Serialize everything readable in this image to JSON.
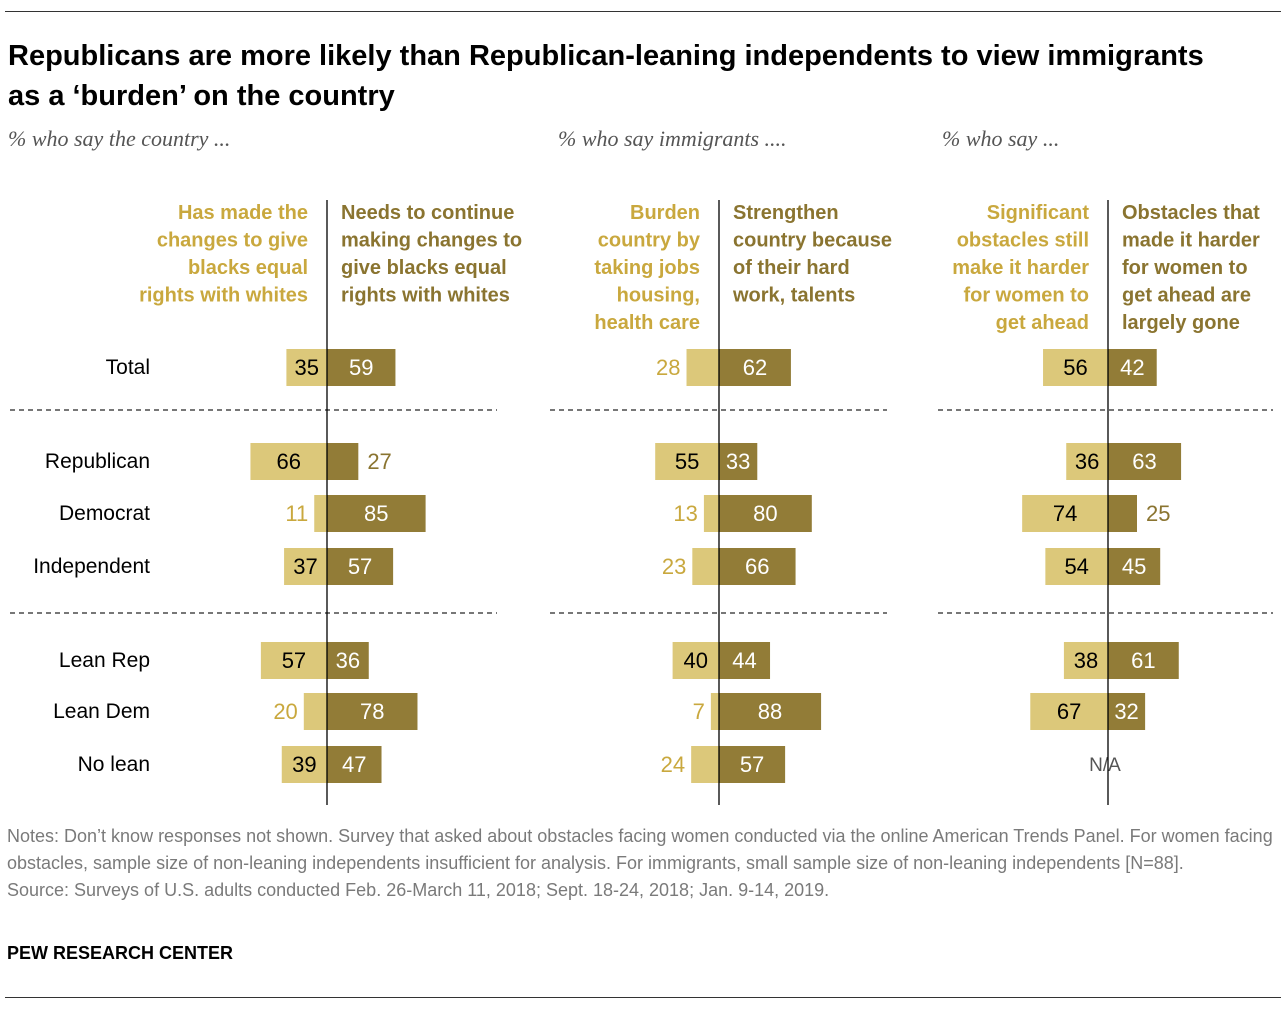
{
  "title": "Republicans are more likely than Republican-leaning independents to view immigrants as a ‘burden’ on the country",
  "colors": {
    "light": "#dcc87a",
    "dark": "#927c37",
    "light_text": "#c9a83e",
    "dark_text": "#8a7430"
  },
  "chart_data": [
    {
      "type": "bar",
      "subtitle": "% who say the country ...",
      "left_label": [
        "Has made the",
        "changes to give",
        "blacks equal",
        "rights with whites"
      ],
      "right_label": [
        "Needs to continue",
        "making changes to",
        "give blacks equal",
        "rights with whites"
      ],
      "categories": [
        "Total",
        "Republican",
        "Democrat",
        "Independent",
        "Lean Rep",
        "Lean Dem",
        "No lean"
      ],
      "series": [
        {
          "name": "Has made the changes to give blacks equal rights with whites",
          "values": [
            35,
            66,
            11,
            37,
            57,
            20,
            39
          ]
        },
        {
          "name": "Needs to continue making changes to give blacks equal rights with whites",
          "values": [
            59,
            27,
            85,
            57,
            36,
            78,
            47
          ]
        }
      ]
    },
    {
      "type": "bar",
      "subtitle": "% who say immigrants ....",
      "left_label": [
        "Burden",
        "country by",
        "taking jobs",
        "housing,",
        "health care"
      ],
      "right_label": [
        "Strengthen",
        "country because",
        "of their hard",
        "work, talents"
      ],
      "categories": [
        "Total",
        "Republican",
        "Democrat",
        "Independent",
        "Lean Rep",
        "Lean Dem",
        "No lean"
      ],
      "series": [
        {
          "name": "Burden country by taking jobs housing, health care",
          "values": [
            28,
            55,
            13,
            23,
            40,
            7,
            24
          ]
        },
        {
          "name": "Strengthen country because of their hard work, talents",
          "values": [
            62,
            33,
            80,
            66,
            44,
            88,
            57
          ]
        }
      ]
    },
    {
      "type": "bar",
      "subtitle": "% who say ...",
      "left_label": [
        "Significant",
        "obstacles still",
        "make it harder",
        "for women to",
        "get ahead"
      ],
      "right_label": [
        "Obstacles that",
        "made it harder",
        "for women to",
        "get ahead are",
        "largely gone"
      ],
      "categories": [
        "Total",
        "Republican",
        "Democrat",
        "Independent",
        "Lean Rep",
        "Lean Dem",
        "No lean"
      ],
      "series": [
        {
          "name": "Significant obstacles still make it harder for women to get ahead",
          "values": [
            56,
            36,
            74,
            54,
            38,
            67,
            null
          ]
        },
        {
          "name": "Obstacles that made it harder for women to get ahead are largely gone",
          "values": [
            42,
            63,
            25,
            45,
            61,
            32,
            null
          ]
        }
      ],
      "na_label": "N/A"
    }
  ],
  "notes": [
    "Notes: Don’t know responses not shown. Survey that asked about obstacles facing women conducted via the online American Trends Panel. For women facing obstacles, sample size of non-leaning independents insufficient for analysis. For immigrants, small sample size of non-leaning independents [N=88].",
    "Source: Surveys of U.S. adults conducted Feb. 26-March 11, 2018; Sept. 18-24, 2018; Jan. 9-14, 2019."
  ],
  "brand": "PEW RESEARCH CENTER"
}
